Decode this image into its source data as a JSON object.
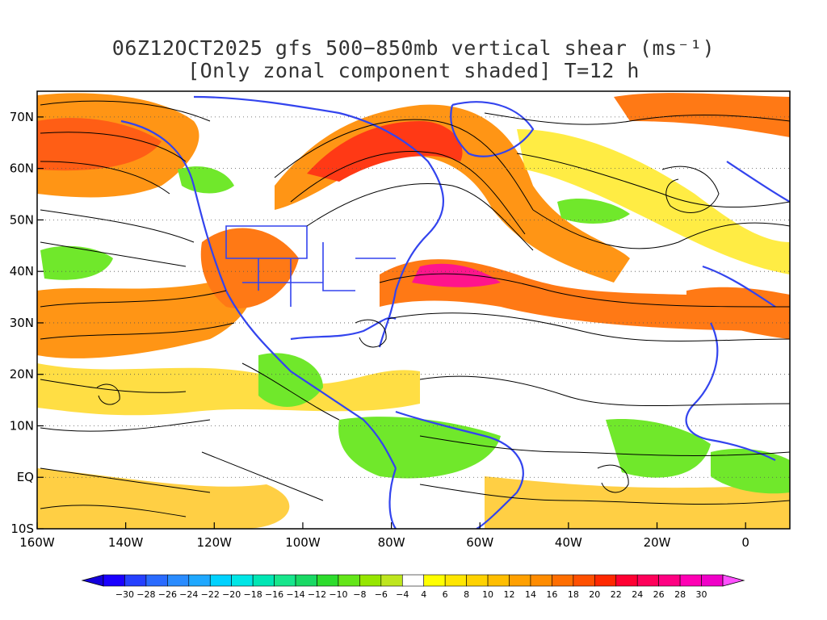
{
  "title": {
    "line1": "06Z12OCT2025 gfs 500−850mb vertical shear (ms⁻¹)",
    "line2": "[Only zonal component shaded] T=12 h"
  },
  "map": {
    "lon_range": [
      -160,
      10
    ],
    "lat_range": [
      -10,
      75
    ],
    "x_ticks": [
      {
        "lon": -160,
        "label": "160W"
      },
      {
        "lon": -140,
        "label": "140W"
      },
      {
        "lon": -120,
        "label": "120W"
      },
      {
        "lon": -100,
        "label": "100W"
      },
      {
        "lon": -80,
        "label": "80W"
      },
      {
        "lon": -60,
        "label": "60W"
      },
      {
        "lon": -40,
        "label": "40W"
      },
      {
        "lon": -20,
        "label": "20W"
      },
      {
        "lon": 0,
        "label": "0"
      }
    ],
    "y_ticks": [
      {
        "lat": -10,
        "label": "10S"
      },
      {
        "lat": 0,
        "label": "EQ"
      },
      {
        "lat": 10,
        "label": "10N"
      },
      {
        "lat": 20,
        "label": "20N"
      },
      {
        "lat": 30,
        "label": "30N"
      },
      {
        "lat": 40,
        "label": "40N"
      },
      {
        "lat": 50,
        "label": "50N"
      },
      {
        "lat": 60,
        "label": "60N"
      },
      {
        "lat": 70,
        "label": "70N"
      }
    ]
  },
  "colorbar": {
    "labels": [
      "−30",
      "−28",
      "−26",
      "−24",
      "−22",
      "−20",
      "−18",
      "−16",
      "−14",
      "−12",
      "−10",
      "−8",
      "−6",
      "−4",
      "4",
      "6",
      "8",
      "10",
      "12",
      "14",
      "16",
      "18",
      "20",
      "22",
      "24",
      "26",
      "28",
      "30"
    ],
    "colors": [
      "#1a00ff",
      "#2540ff",
      "#2a6bff",
      "#2a8cff",
      "#1fa8ff",
      "#00d2ff",
      "#00e6e6",
      "#00e6b4",
      "#17e68c",
      "#19d964",
      "#2ddc2d",
      "#64e619",
      "#96e600",
      "#bee61e",
      "#ffffff",
      "#ffff00",
      "#ffe600",
      "#ffd200",
      "#ffbe00",
      "#ffa000",
      "#ff8c00",
      "#ff6e00",
      "#ff5000",
      "#ff2800",
      "#ff0032",
      "#ff005a",
      "#ff0082",
      "#ff00b4",
      "#f000c8"
    ],
    "under_color": "#1400dc",
    "over_color": "#ff50ff"
  }
}
